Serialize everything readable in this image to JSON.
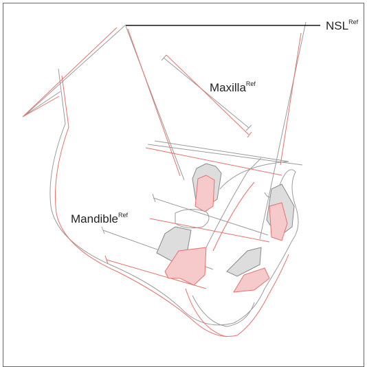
{
  "labels": [
    {
      "text": "NSL",
      "superscript": "Ref"
    },
    {
      "text": "Maxilla",
      "superscript": "Ref"
    },
    {
      "text": "Mandible",
      "superscript": "Ref"
    }
  ]
}
